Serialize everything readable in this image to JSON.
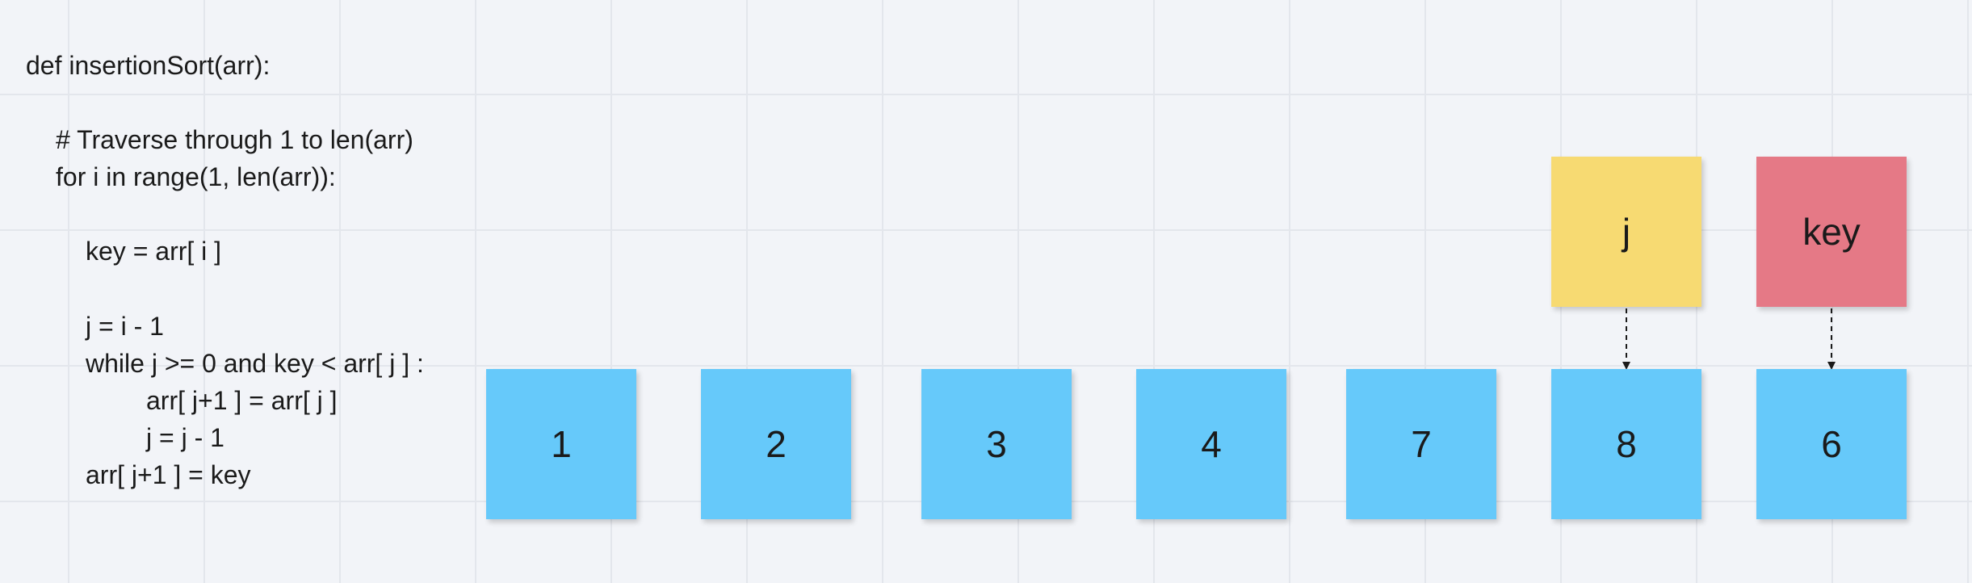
{
  "code": {
    "lines": [
      "def insertionSort(arr):",
      "# Traverse through 1 to len(arr)",
      "for i in range(1, len(arr)):",
      "key = arr[ i ]",
      "j = i - 1",
      "while j >= 0 and key < arr[ j ] :",
      "arr[ j+1 ] = arr[ j ]",
      "j = j - 1",
      "arr[ j+1 ] = key"
    ]
  },
  "array": {
    "items": [
      "1",
      "2",
      "3",
      "4",
      "7",
      "8",
      "6"
    ]
  },
  "pointers": {
    "j": "j",
    "key": "key"
  },
  "colors": {
    "array_cell": "#66c9fa",
    "j_pointer": "#f7da72",
    "key_pointer": "#e57986",
    "text": "#1a1a1a",
    "background": "#f2f4f8"
  }
}
